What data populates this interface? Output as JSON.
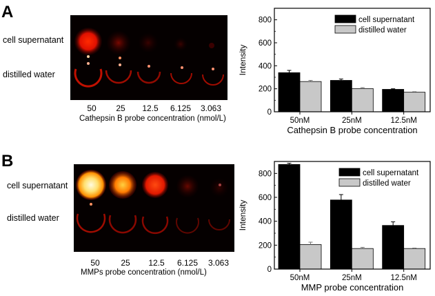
{
  "panel_a": {
    "letter": "A",
    "row_labels": [
      "cell supernatant",
      "distilled water"
    ],
    "concentrations": [
      "50",
      "25",
      "12.5",
      "6.125",
      "3.063"
    ],
    "caption": "Cathepsin B probe concentration (nmol/L)"
  },
  "panel_b": {
    "letter": "B",
    "row_labels": [
      "cell supernatant",
      "distilled water"
    ],
    "concentrations": [
      "50",
      "25",
      "12.5",
      "6.125",
      "3.063"
    ],
    "caption": "MMPs probe concentration (nmol/L)"
  },
  "colors": {
    "series1": "#000000",
    "series2": "#c8c8c8",
    "frame": "#000000"
  },
  "chart_data": [
    {
      "type": "bar",
      "title": "",
      "xlabel": "Cathepsin B probe concentration",
      "ylabel": "Intensity",
      "categories": [
        "50nM",
        "25nM",
        "12.5nM"
      ],
      "ylim": [
        0,
        900
      ],
      "yticks": [
        0,
        200,
        400,
        600,
        800
      ],
      "legend_position": "top-right",
      "series": [
        {
          "name": "cell supernatant",
          "values": [
            340,
            273,
            195
          ],
          "errors": [
            20,
            12,
            5
          ]
        },
        {
          "name": "distilled water",
          "values": [
            263,
            202,
            170
          ],
          "errors": [
            10,
            8,
            4
          ]
        }
      ]
    },
    {
      "type": "bar",
      "title": "",
      "xlabel": "MMP probe concentration",
      "ylabel": "Intensity",
      "categories": [
        "50nM",
        "25nM",
        "12.5nM"
      ],
      "ylim": [
        0,
        900
      ],
      "yticks": [
        0,
        200,
        400,
        600,
        800
      ],
      "legend_position": "top-right",
      "series": [
        {
          "name": "cell supernatant",
          "values": [
            875,
            578,
            365
          ],
          "errors": [
            10,
            45,
            30
          ]
        },
        {
          "name": "distilled water",
          "values": [
            205,
            172,
            172
          ],
          "errors": [
            20,
            10,
            4
          ]
        }
      ]
    }
  ]
}
